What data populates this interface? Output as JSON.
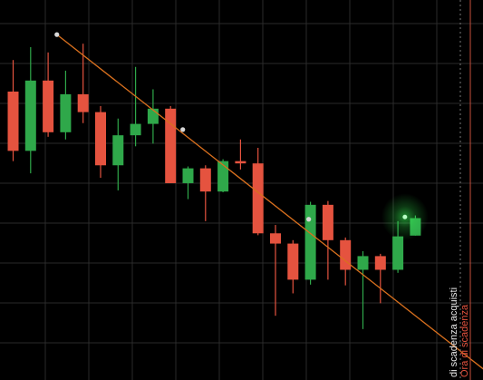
{
  "colors": {
    "background": "#000000",
    "grid": "#2a2a2a",
    "up": "#2fa84a",
    "down": "#e5533f",
    "trendline": "#d9701e",
    "anchor": "#d8d8d8",
    "expiry_line": "#c9503d",
    "purchase_line": "#777777",
    "label_light": "#e8e8e8",
    "label_accent": "#e5533f",
    "glow": "#39ff57"
  },
  "labels": {
    "purchase_expiry": "di scadenza acquisti",
    "expiry": "Ora di scadenza"
  },
  "chart_data": {
    "type": "candlestick",
    "title": "",
    "xlabel": "",
    "ylabel": "",
    "grid": true,
    "ylim": [
      0,
      100
    ],
    "candles": [
      {
        "open": 75.9,
        "high": 84.2,
        "low": 57.6,
        "close": 60.3
      },
      {
        "open": 60.3,
        "high": 87.6,
        "low": 54.4,
        "close": 78.8
      },
      {
        "open": 78.8,
        "high": 86.2,
        "low": 64.0,
        "close": 65.2
      },
      {
        "open": 65.2,
        "high": 81.4,
        "low": 63.3,
        "close": 75.2
      },
      {
        "open": 75.2,
        "high": 88.5,
        "low": 67.6,
        "close": 70.5
      },
      {
        "open": 70.5,
        "high": 72.1,
        "low": 53.2,
        "close": 56.5
      },
      {
        "open": 56.5,
        "high": 68.8,
        "low": 49.9,
        "close": 64.4
      },
      {
        "open": 64.4,
        "high": 82.4,
        "low": 61.5,
        "close": 67.4
      },
      {
        "open": 67.4,
        "high": 76.5,
        "low": 62.2,
        "close": 71.4
      },
      {
        "open": 71.4,
        "high": 72.1,
        "low": 51.8,
        "close": 51.8
      },
      {
        "open": 51.8,
        "high": 56.2,
        "low": 47.6,
        "close": 55.7
      },
      {
        "open": 55.7,
        "high": 56.5,
        "low": 41.8,
        "close": 49.6
      },
      {
        "open": 49.6,
        "high": 58.1,
        "low": 49.4,
        "close": 57.6
      },
      {
        "open": 57.6,
        "high": 63.3,
        "low": 55.4,
        "close": 57.0
      },
      {
        "open": 57.0,
        "high": 61.1,
        "low": 38.1,
        "close": 38.6
      },
      {
        "open": 38.6,
        "high": 40.8,
        "low": 16.9,
        "close": 35.9
      },
      {
        "open": 35.9,
        "high": 36.8,
        "low": 22.8,
        "close": 26.4
      },
      {
        "open": 26.4,
        "high": 46.9,
        "low": 25.1,
        "close": 46.1
      },
      {
        "open": 46.1,
        "high": 47.1,
        "low": 26.4,
        "close": 36.8
      },
      {
        "open": 36.8,
        "high": 37.5,
        "low": 24.9,
        "close": 29.0
      },
      {
        "open": 29.0,
        "high": 33.9,
        "low": 13.4,
        "close": 32.6
      },
      {
        "open": 32.6,
        "high": 33.2,
        "low": 20.2,
        "close": 29.0
      },
      {
        "open": 29.0,
        "high": 41.8,
        "low": 28.2,
        "close": 37.8
      },
      {
        "open": 38.0,
        "high": 43.3,
        "low": 38.0,
        "close": 42.6
      }
    ],
    "trendline": [
      {
        "x": 2.5,
        "y": 90.9
      },
      {
        "x": 23.5,
        "y": 15.1
      }
    ],
    "trendline_anchors": [
      {
        "x": 2.5,
        "y": 90.9
      },
      {
        "x": 9.7,
        "y": 65.9
      },
      {
        "x": 16.9,
        "y": 42.3
      }
    ],
    "current_price": {
      "x": 22.4,
      "y": 42.9
    }
  }
}
